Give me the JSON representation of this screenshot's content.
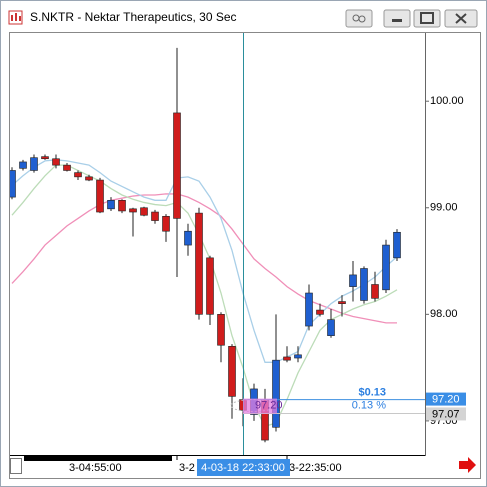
{
  "chart_data": {
    "type": "candlestick",
    "title": "S.NKTR - Nektar Therapeutics, 30 Sec",
    "categories": [
      null,
      null,
      null,
      null,
      null,
      "3-04:55:00",
      null,
      null,
      null,
      null,
      null,
      null,
      null,
      null,
      null,
      "3-2",
      null,
      null,
      null,
      null,
      null,
      null,
      null,
      null,
      null,
      "3-22:35:00",
      null,
      null,
      null,
      null,
      null,
      null,
      null,
      null,
      null,
      null
    ],
    "open": [
      99.1,
      99.37,
      99.35,
      99.48,
      99.46,
      99.4,
      99.33,
      99.29,
      99.26,
      98.99,
      99.07,
      98.99,
      99.0,
      98.96,
      98.92,
      99.89,
      98.65,
      98.95,
      98.53,
      98.0,
      97.7,
      97.2,
      97.06,
      97.2,
      96.94,
      97.6,
      97.59,
      97.89,
      98.04,
      97.8,
      98.12,
      98.26,
      98.13,
      98.28,
      98.23,
      98.53
    ],
    "high": [
      99.38,
      99.45,
      99.5,
      99.5,
      99.5,
      99.42,
      99.35,
      99.31,
      99.28,
      99.1,
      99.08,
      99.0,
      99.01,
      98.98,
      98.94,
      100.5,
      98.85,
      99.0,
      98.55,
      98.02,
      97.72,
      97.4,
      97.35,
      97.3,
      98.0,
      97.7,
      97.7,
      98.28,
      98.1,
      98.05,
      98.18,
      98.5,
      98.45,
      98.4,
      98.7,
      98.8
    ],
    "low": [
      99.08,
      99.35,
      99.33,
      99.45,
      99.37,
      99.34,
      99.26,
      99.25,
      98.95,
      98.97,
      98.95,
      98.73,
      98.92,
      98.85,
      98.68,
      98.35,
      98.55,
      97.95,
      97.9,
      97.55,
      97.02,
      96.95,
      97.0,
      96.8,
      96.9,
      97.55,
      97.55,
      97.85,
      97.98,
      97.78,
      97.98,
      98.12,
      98.1,
      98.12,
      98.2,
      98.5
    ],
    "close": [
      99.35,
      99.43,
      99.47,
      99.46,
      99.4,
      99.35,
      99.29,
      99.26,
      98.96,
      99.07,
      98.97,
      98.96,
      98.93,
      98.88,
      98.78,
      98.9,
      98.78,
      98.0,
      98.0,
      97.71,
      97.23,
      97.1,
      97.3,
      96.82,
      97.57,
      97.57,
      97.62,
      98.2,
      98.0,
      97.95,
      98.1,
      98.37,
      98.43,
      98.15,
      98.65,
      98.77
    ],
    "up_color": "#1f5fd0",
    "down_color": "#d01c1c",
    "series": [
      {
        "color": "#f08fb8",
        "values": [
          98.29,
          98.4,
          98.52,
          98.65,
          98.74,
          98.83,
          98.9,
          98.97,
          99.03,
          99.07,
          99.09,
          99.11,
          99.12,
          99.12,
          99.13,
          99.13,
          99.1,
          99.05,
          98.99,
          98.92,
          98.8,
          98.66,
          98.52,
          98.43,
          98.35,
          98.26,
          98.19,
          98.13,
          98.09,
          98.05,
          98.01,
          97.98,
          97.96,
          97.94,
          97.92,
          97.92
        ]
      },
      {
        "color": "#a9cfe8",
        "values": [
          99.21,
          99.3,
          99.38,
          99.44,
          99.45,
          99.44,
          99.42,
          99.4,
          99.33,
          99.25,
          99.2,
          99.15,
          99.1,
          99.07,
          99.07,
          99.28,
          99.29,
          99.25,
          99.1,
          98.9,
          98.6,
          98.2,
          97.85,
          97.55,
          97.55,
          97.6,
          97.65,
          97.9,
          98.0,
          98.1,
          98.17,
          98.22,
          98.28,
          98.35,
          98.45,
          98.54
        ]
      },
      {
        "color": "#bcdcb8",
        "values": [
          98.93,
          99.05,
          99.18,
          99.3,
          99.4,
          99.4,
          99.35,
          99.3,
          99.25,
          99.18,
          99.12,
          99.08,
          99.05,
          99.03,
          99.02,
          99.05,
          98.95,
          98.75,
          98.52,
          98.2,
          97.8,
          97.5,
          97.15,
          96.95,
          96.98,
          97.2,
          97.45,
          97.65,
          97.85,
          97.95,
          98.0,
          98.05,
          98.09,
          98.12,
          98.17,
          98.23
        ]
      }
    ],
    "ylim": [
      96.68,
      100.64
    ],
    "yticks": [
      {
        "value": 97,
        "label": "97.00"
      },
      {
        "value": 98,
        "label": "98.00"
      },
      {
        "value": 99,
        "label": "99.00"
      },
      {
        "value": 100,
        "label": "100.00"
      }
    ],
    "crosshair": {
      "label": "4-03-18 22:33:00",
      "price": {
        "value": 97.2,
        "label": "97.20"
      }
    },
    "last_price": {
      "value": 97.07,
      "label": "97.07"
    },
    "measure": {
      "change": "$0.13",
      "percent": "0.13 %"
    }
  }
}
